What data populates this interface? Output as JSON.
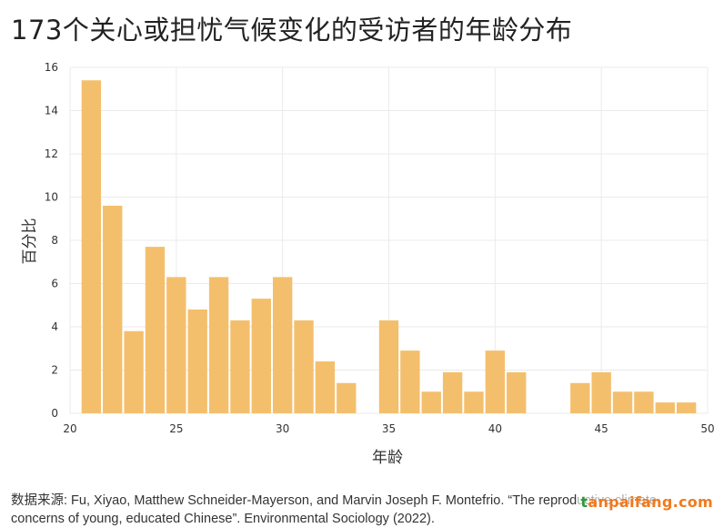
{
  "title": "173个关心或担忧气候变化的受访者的年龄分布",
  "source_line1": "数据来源: Fu, Xiyao, Matthew Schneider-Mayerson, and Marvin Joseph F. Montefrio. “The reproductive climate",
  "source_line2": "concerns of young, educated Chinese”. Environmental Sociology (2022).",
  "watermark": {
    "prefix": "t",
    "text": "anpaifang.com"
  },
  "colors": {
    "bar": "#f4bf6c",
    "grid": "#ebebeb",
    "text": "#333333"
  },
  "chart_data": {
    "type": "bar",
    "title": "173个关心或担忧气候变化的受访者的年龄分布",
    "xlabel": "年龄",
    "ylabel": "百分比",
    "x": [
      21,
      22,
      23,
      24,
      25,
      26,
      27,
      28,
      29,
      30,
      31,
      32,
      33,
      34,
      35,
      36,
      37,
      38,
      39,
      40,
      41,
      42,
      43,
      44,
      45,
      46,
      47,
      48,
      49
    ],
    "values": [
      15.4,
      9.6,
      3.8,
      7.7,
      6.3,
      4.8,
      6.3,
      4.3,
      5.3,
      6.3,
      4.3,
      2.4,
      1.4,
      0,
      4.3,
      2.9,
      1.0,
      1.9,
      1.0,
      2.9,
      1.9,
      0,
      0,
      1.4,
      1.9,
      1.0,
      1.0,
      0.5,
      0.5
    ],
    "xlim": [
      20,
      50
    ],
    "ylim": [
      0,
      16
    ],
    "xticks": [
      20,
      25,
      30,
      35,
      40,
      45,
      50
    ],
    "yticks": [
      0,
      2,
      4,
      6,
      8,
      10,
      12,
      14,
      16
    ],
    "grid": true
  }
}
